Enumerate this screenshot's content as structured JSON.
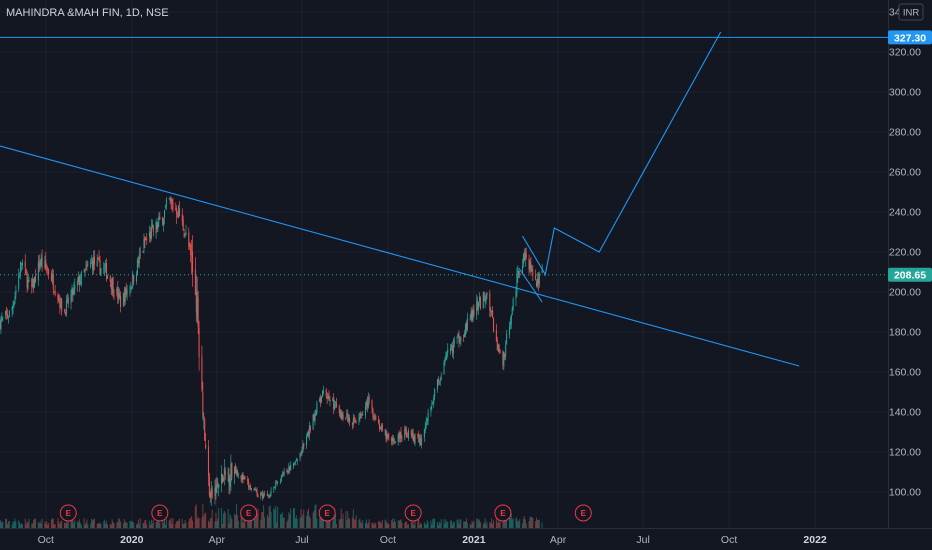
{
  "chart_data": {
    "type": "candlestick",
    "title": "MAHINDRA &MAH FIN, 1D, NSE",
    "currency": "INR",
    "ylim": [
      82,
      346
    ],
    "y_ticks": [
      100,
      120,
      140,
      160,
      180,
      200,
      220,
      240,
      260,
      280,
      300,
      320,
      340
    ],
    "x_ticks": [
      {
        "label": "Oct",
        "year": false,
        "date": "2019-10-01"
      },
      {
        "label": "2020",
        "year": true,
        "date": "2020-01-01"
      },
      {
        "label": "Apr",
        "year": false,
        "date": "2020-04-01"
      },
      {
        "label": "Jul",
        "year": false,
        "date": "2020-07-01"
      },
      {
        "label": "Oct",
        "year": false,
        "date": "2020-10-01"
      },
      {
        "label": "2021",
        "year": true,
        "date": "2021-01-01"
      },
      {
        "label": "Apr",
        "year": false,
        "date": "2021-04-01"
      },
      {
        "label": "Jul",
        "year": false,
        "date": "2021-07-01"
      },
      {
        "label": "Oct",
        "year": false,
        "date": "2021-10-01"
      },
      {
        "label": "2022",
        "year": true,
        "date": "2022-01-01"
      }
    ],
    "price_path": [
      [
        "2019-08-13",
        185
      ],
      [
        "2019-08-25",
        190
      ],
      [
        "2019-09-05",
        215
      ],
      [
        "2019-09-15",
        200
      ],
      [
        "2019-09-25",
        215
      ],
      [
        "2019-10-05",
        210
      ],
      [
        "2019-10-20",
        190
      ],
      [
        "2019-11-05",
        205
      ],
      [
        "2019-11-20",
        215
      ],
      [
        "2019-12-05",
        210
      ],
      [
        "2019-12-20",
        195
      ],
      [
        "2020-01-01",
        205
      ],
      [
        "2020-01-15",
        225
      ],
      [
        "2020-01-31",
        235
      ],
      [
        "2020-02-10",
        245
      ],
      [
        "2020-02-20",
        240
      ],
      [
        "2020-03-01",
        225
      ],
      [
        "2020-03-10",
        200
      ],
      [
        "2020-03-15",
        160
      ],
      [
        "2020-03-20",
        120
      ],
      [
        "2020-03-25",
        97
      ],
      [
        "2020-04-05",
        105
      ],
      [
        "2020-04-20",
        112
      ],
      [
        "2020-05-10",
        100
      ],
      [
        "2020-05-25",
        98
      ],
      [
        "2020-06-10",
        108
      ],
      [
        "2020-06-25",
        115
      ],
      [
        "2020-07-05",
        125
      ],
      [
        "2020-07-15",
        140
      ],
      [
        "2020-07-25",
        150
      ],
      [
        "2020-08-10",
        140
      ],
      [
        "2020-08-25",
        135
      ],
      [
        "2020-09-10",
        145
      ],
      [
        "2020-09-25",
        130
      ],
      [
        "2020-10-05",
        125
      ],
      [
        "2020-10-20",
        130
      ],
      [
        "2020-11-05",
        125
      ],
      [
        "2020-11-20",
        150
      ],
      [
        "2020-12-05",
        170
      ],
      [
        "2020-12-20",
        180
      ],
      [
        "2021-01-01",
        190
      ],
      [
        "2021-01-15",
        200
      ],
      [
        "2021-01-25",
        175
      ],
      [
        "2021-02-01",
        165
      ],
      [
        "2021-02-08",
        185
      ],
      [
        "2021-02-18",
        210
      ],
      [
        "2021-02-25",
        220
      ],
      [
        "2021-03-05",
        210
      ],
      [
        "2021-03-10",
        205
      ],
      [
        "2021-03-15",
        208.65
      ]
    ],
    "candles_visible_end": "2021-03-15",
    "current_price": 208.65,
    "current_price_label": "208.65",
    "target_price": 327.3,
    "target_price_label": "327.30",
    "drawings": {
      "descending_trendline": [
        [
          "2019-08-13",
          273
        ],
        [
          "2021-12-15",
          163
        ]
      ],
      "projection_path": [
        [
          "2021-03-18",
          208
        ],
        [
          "2021-03-28",
          232
        ],
        [
          "2021-05-15",
          220
        ],
        [
          "2021-09-22",
          330
        ]
      ],
      "horizontal_target": 327.3,
      "pennant_upper": [
        [
          "2021-02-22",
          228
        ],
        [
          "2021-03-18",
          209
        ]
      ],
      "pennant_lower": [
        [
          "2021-02-18",
          212
        ],
        [
          "2021-03-15",
          195
        ]
      ],
      "colors": {
        "drawing": "#2196f3",
        "up": "#26a69a",
        "down": "#ef5350",
        "earnings": "#f23645"
      }
    },
    "earnings_markers": [
      {
        "label": "E",
        "date": "2019-10-25"
      },
      {
        "label": "E",
        "date": "2020-01-31"
      },
      {
        "label": "E",
        "date": "2020-05-05"
      },
      {
        "label": "E",
        "date": "2020-07-28"
      },
      {
        "label": "E",
        "date": "2020-10-28"
      },
      {
        "label": "E",
        "date": "2021-02-01"
      },
      {
        "label": "E",
        "date": "2021-04-28"
      }
    ]
  }
}
